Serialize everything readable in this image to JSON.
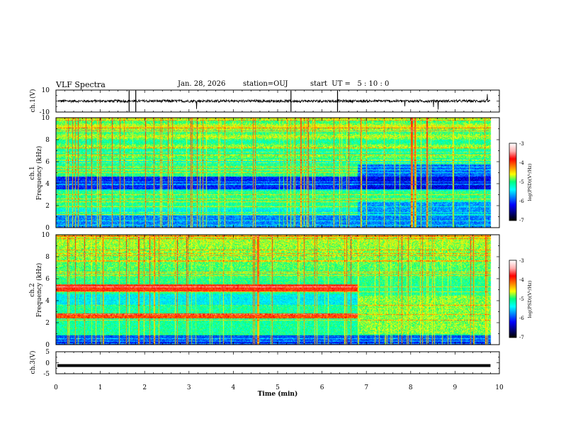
{
  "header": {
    "title": "VLF Spectra",
    "date": "Jan. 28, 2026",
    "station": "station=OUJ",
    "start": "start  UT =   5 : 10 : 0"
  },
  "chart_data": [
    {
      "type": "line",
      "panel": "ch1-waveform",
      "ylabel": "ch.1(V)",
      "yticks": [
        "10",
        "-10"
      ],
      "ylim": [
        -10,
        10
      ],
      "xlim": [
        0,
        10
      ],
      "baseline_value": 0,
      "noise_amplitude": 1.2
    },
    {
      "type": "heatmap",
      "panel": "ch1-spectrogram",
      "ylabel_top": "ch.1",
      "ylabel": "Frequency (kHz)",
      "yticks": [
        "0",
        "2",
        "4",
        "6",
        "8",
        "10"
      ],
      "ylim": [
        0,
        10
      ],
      "xlim": [
        0,
        10
      ],
      "regime_change_min": 6.8,
      "data_end_min": 9.8,
      "colorbar": {
        "label": "log(PSD)(V²/Hz)",
        "ticks": [
          "-3",
          "-4",
          "-5",
          "-6",
          "-7"
        ],
        "range": [
          -7,
          -3
        ]
      }
    },
    {
      "type": "heatmap",
      "panel": "ch2-spectrogram",
      "ylabel_top": "ch.2",
      "ylabel": "Frequency (kHz)",
      "yticks": [
        "0",
        "2",
        "4",
        "6",
        "8",
        "10"
      ],
      "ylim": [
        0,
        10
      ],
      "xlim": [
        0,
        10
      ],
      "regime_change_min": 6.8,
      "data_end_min": 9.8,
      "colorbar": {
        "label": "log(PSD)(V²/Hz)",
        "ticks": [
          "-3",
          "-4",
          "-5",
          "-6",
          "-7"
        ],
        "range": [
          -7,
          -3
        ]
      }
    },
    {
      "type": "line",
      "panel": "ch3-waveform",
      "ylabel": "ch.3(V)",
      "yticks": [
        "5",
        "0",
        "-5"
      ],
      "ylim": [
        -5,
        5
      ],
      "xlim": [
        0,
        10
      ],
      "baseline_value": -1.3
    }
  ],
  "xaxis": {
    "label": "Time (min)",
    "ticks": [
      "0",
      "1",
      "2",
      "3",
      "4",
      "5",
      "6",
      "7",
      "8",
      "9",
      "10"
    ]
  },
  "colors": {
    "colormap": [
      "#000000",
      "#000080",
      "#0000ff",
      "#0080ff",
      "#00ffff",
      "#00ff80",
      "#ffff00",
      "#ff8000",
      "#ff0000",
      "#ffb0b0",
      "#ffffff"
    ]
  }
}
